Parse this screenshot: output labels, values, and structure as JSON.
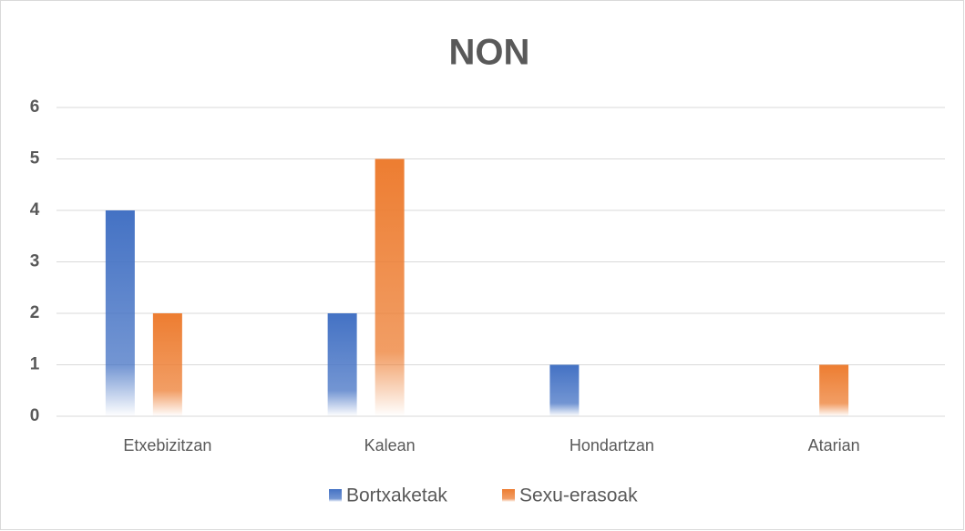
{
  "chart_data": {
    "type": "bar",
    "title": "NON",
    "categories": [
      "Etxebizitzan",
      "Kalean",
      "Hondartzan",
      "Atarian"
    ],
    "series": [
      {
        "name": "Bortxaketak",
        "color": "#4472c4",
        "values": [
          4,
          2,
          1,
          0
        ]
      },
      {
        "name": "Sexu-erasoak",
        "color": "#ed7d31",
        "values": [
          2,
          5,
          0,
          1
        ]
      }
    ],
    "ylim": [
      0,
      6
    ],
    "yticks": [
      0,
      1,
      2,
      3,
      4,
      5,
      6
    ],
    "grid": true,
    "legend": "bottom"
  }
}
